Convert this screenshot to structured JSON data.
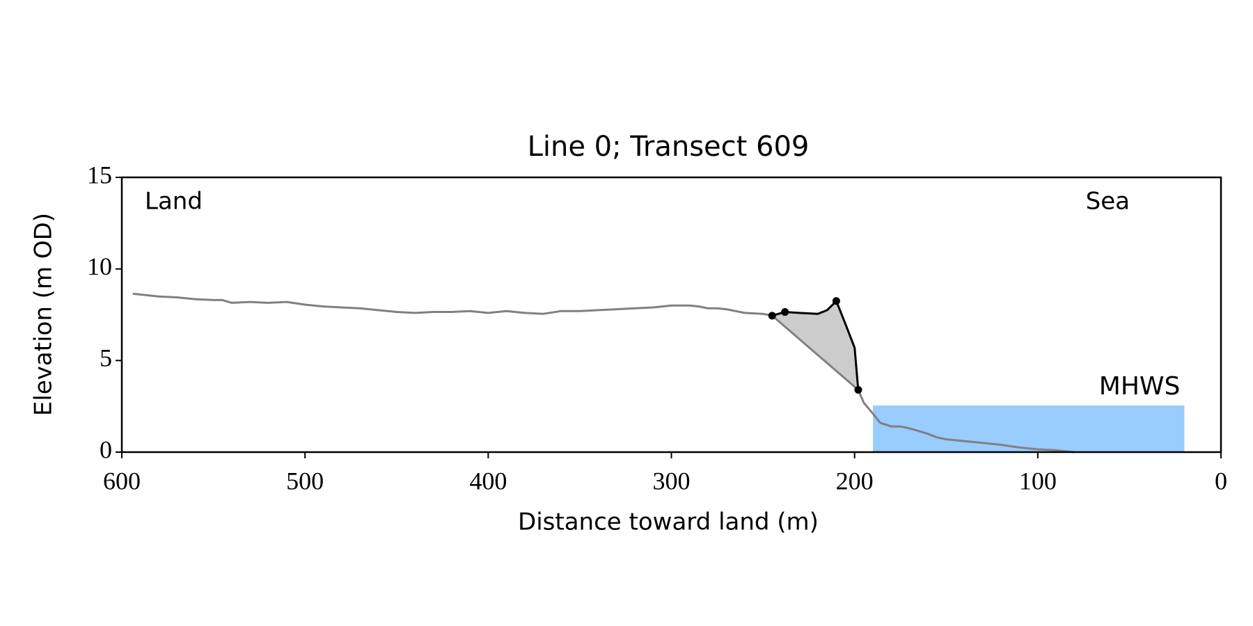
{
  "chart_data": {
    "type": "line",
    "title": "Line 0; Transect 609",
    "xlabel": "Distance toward land (m)",
    "ylabel": "Elevation (m OD)",
    "xlim": [
      600,
      0
    ],
    "ylim": [
      0,
      15
    ],
    "xticks": [
      600,
      500,
      400,
      300,
      200,
      100,
      0
    ],
    "yticks": [
      0,
      5,
      10,
      15
    ],
    "annotations": [
      "Land",
      "Sea"
    ],
    "series": [
      {
        "color": "#808080",
        "x": [
          594,
          580,
          570,
          560,
          550,
          545,
          540,
          530,
          520,
          510,
          500,
          490,
          480,
          470,
          460,
          450,
          440,
          430,
          420,
          410,
          400,
          390,
          380,
          370,
          360,
          350,
          340,
          330,
          320,
          310,
          300,
          290,
          285,
          280,
          275,
          270,
          265,
          260,
          250,
          245,
          198,
          195,
          190,
          186,
          180,
          175,
          170,
          165,
          160,
          155,
          150,
          145,
          140,
          135,
          130,
          120,
          110,
          100,
          90,
          80
        ],
        "values": [
          8.65,
          8.5,
          8.45,
          8.35,
          8.3,
          8.3,
          8.15,
          8.2,
          8.15,
          8.2,
          8.05,
          7.95,
          7.9,
          7.85,
          7.75,
          7.65,
          7.6,
          7.65,
          7.65,
          7.7,
          7.6,
          7.7,
          7.6,
          7.55,
          7.7,
          7.7,
          7.75,
          7.8,
          7.85,
          7.9,
          8.0,
          8.0,
          7.95,
          7.85,
          7.85,
          7.8,
          7.7,
          7.6,
          7.55,
          7.45,
          3.4,
          2.7,
          2.1,
          1.6,
          1.4,
          1.4,
          1.3,
          1.15,
          1.0,
          0.8,
          0.7,
          0.65,
          0.6,
          0.55,
          0.5,
          0.4,
          0.25,
          0.15,
          0.1,
          0.0
        ]
      },
      {
        "color": "#000000",
        "fill": "#cccccc",
        "x": [
          245,
          238,
          230,
          220,
          215,
          210,
          205,
          200,
          198
        ],
        "values": [
          7.45,
          7.65,
          7.6,
          7.55,
          7.75,
          8.25,
          7.0,
          5.7,
          3.4
        ]
      }
    ],
    "markers": {
      "color": "#000000",
      "x": [
        245,
        238,
        210,
        198
      ],
      "values": [
        7.45,
        7.65,
        8.25,
        3.4
      ]
    },
    "mhws": {
      "label": "MHWS",
      "value": 2.55,
      "x": [
        190,
        20
      ],
      "color": "#99ccff",
      "label_color": "#6699cc"
    }
  }
}
